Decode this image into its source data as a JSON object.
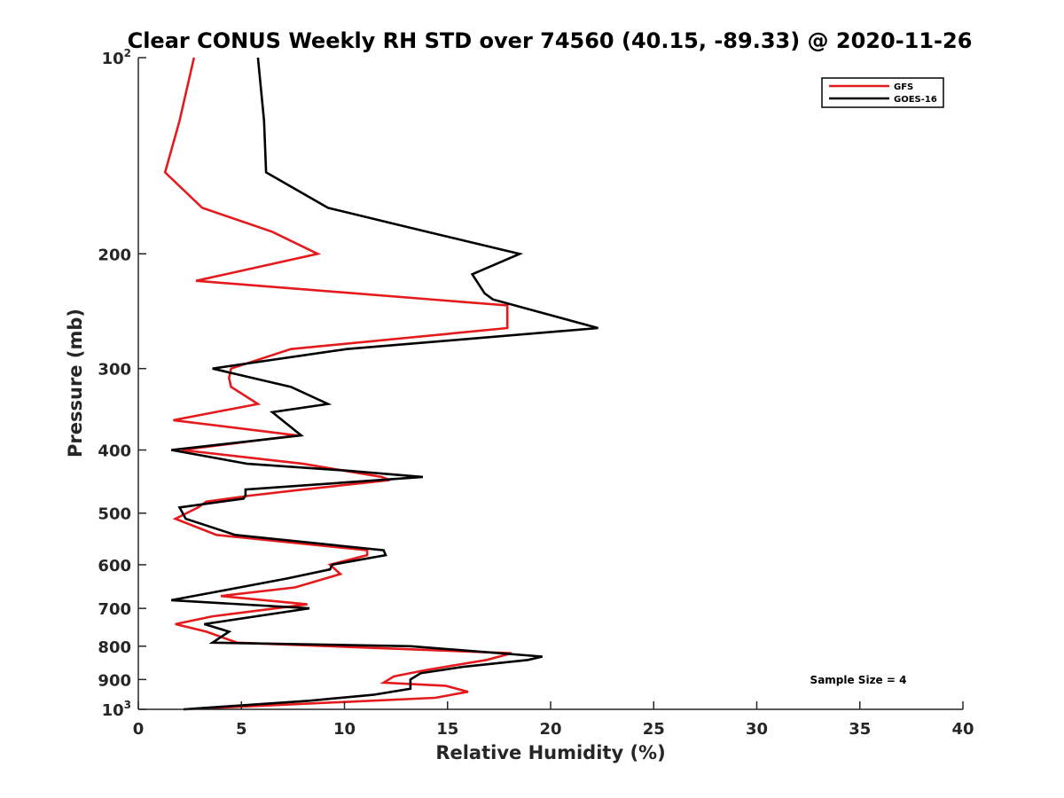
{
  "chart_data": {
    "type": "line",
    "title": "Clear CONUS Weekly RH STD over 74560 (40.15, -89.33) @ 2020-11-26",
    "xlabel": "Relative Humidity (%)",
    "ylabel": "Pressure (mb)",
    "xlim": [
      0,
      40
    ],
    "ylim": [
      1000,
      100
    ],
    "y_scale": "log",
    "y_reversed": true,
    "x_ticks": [
      0,
      5,
      10,
      15,
      20,
      25,
      30,
      35,
      40
    ],
    "y_ticks": [
      {
        "value": 100,
        "label": "10",
        "sup": "2"
      },
      {
        "value": 200,
        "label": "200",
        "sup": ""
      },
      {
        "value": 300,
        "label": "300",
        "sup": ""
      },
      {
        "value": 400,
        "label": "400",
        "sup": ""
      },
      {
        "value": 500,
        "label": "500",
        "sup": ""
      },
      {
        "value": 600,
        "label": "600",
        "sup": ""
      },
      {
        "value": 700,
        "label": "700",
        "sup": ""
      },
      {
        "value": 800,
        "label": "800",
        "sup": ""
      },
      {
        "value": 900,
        "label": "900",
        "sup": ""
      },
      {
        "value": 1000,
        "label": "10",
        "sup": "3"
      }
    ],
    "grid": false,
    "legend_position": "top-right",
    "annotation": "Sample Size = 4",
    "series": [
      {
        "name": "GFS",
        "color": "#e41a1c",
        "points": [
          [
            2.7,
            100
          ],
          [
            2.0,
            125
          ],
          [
            1.3,
            150
          ],
          [
            3.1,
            170
          ],
          [
            6.5,
            185
          ],
          [
            8.7,
            200
          ],
          [
            2.8,
            220
          ],
          [
            17.9,
            240
          ],
          [
            17.9,
            260
          ],
          [
            7.4,
            280
          ],
          [
            4.5,
            300
          ],
          [
            4.4,
            310
          ],
          [
            4.5,
            320
          ],
          [
            5.8,
            340
          ],
          [
            1.7,
            360
          ],
          [
            7.7,
            380
          ],
          [
            2.1,
            400
          ],
          [
            8.0,
            420
          ],
          [
            11.8,
            440
          ],
          [
            12.2,
            445
          ],
          [
            8.0,
            460
          ],
          [
            5.4,
            470
          ],
          [
            3.3,
            480
          ],
          [
            2.9,
            490
          ],
          [
            1.8,
            510
          ],
          [
            3.8,
            540
          ],
          [
            11.1,
            570
          ],
          [
            11.1,
            580
          ],
          [
            9.3,
            600
          ],
          [
            9.8,
            620
          ],
          [
            7.6,
            650
          ],
          [
            4.0,
            670
          ],
          [
            8.2,
            690
          ],
          [
            3.6,
            720
          ],
          [
            1.8,
            740
          ],
          [
            3.3,
            760
          ],
          [
            4.8,
            790
          ],
          [
            18.1,
            820
          ],
          [
            16.9,
            840
          ],
          [
            14.0,
            870
          ],
          [
            12.4,
            890
          ],
          [
            11.9,
            910
          ],
          [
            14.9,
            920
          ],
          [
            16.0,
            940
          ],
          [
            14.4,
            960
          ],
          [
            2.2,
            1000
          ]
        ]
      },
      {
        "name": "GOES-16",
        "color": "#000000",
        "points": [
          [
            5.8,
            100
          ],
          [
            6.1,
            125
          ],
          [
            6.2,
            150
          ],
          [
            9.2,
            170
          ],
          [
            14.0,
            185
          ],
          [
            18.5,
            200
          ],
          [
            16.2,
            215
          ],
          [
            16.8,
            230
          ],
          [
            17.2,
            235
          ],
          [
            22.3,
            260
          ],
          [
            10.1,
            280
          ],
          [
            3.6,
            300
          ],
          [
            7.4,
            320
          ],
          [
            9.2,
            340
          ],
          [
            6.5,
            350
          ],
          [
            7.9,
            380
          ],
          [
            1.6,
            400
          ],
          [
            5.3,
            420
          ],
          [
            10.0,
            430
          ],
          [
            13.8,
            440
          ],
          [
            5.2,
            460
          ],
          [
            5.2,
            470
          ],
          [
            5.1,
            475
          ],
          [
            2.0,
            490
          ],
          [
            2.3,
            510
          ],
          [
            4.7,
            540
          ],
          [
            11.9,
            570
          ],
          [
            12.0,
            580
          ],
          [
            9.4,
            600
          ],
          [
            9.3,
            610
          ],
          [
            7.2,
            630
          ],
          [
            3.8,
            660
          ],
          [
            1.6,
            680
          ],
          [
            8.3,
            700
          ],
          [
            3.2,
            740
          ],
          [
            4.4,
            760
          ],
          [
            3.6,
            790
          ],
          [
            13.2,
            800
          ],
          [
            19.6,
            830
          ],
          [
            18.9,
            840
          ],
          [
            15.8,
            860
          ],
          [
            13.7,
            880
          ],
          [
            13.2,
            900
          ],
          [
            13.2,
            930
          ],
          [
            11.4,
            950
          ],
          [
            8.3,
            970
          ],
          [
            2.2,
            1000
          ]
        ]
      }
    ]
  }
}
